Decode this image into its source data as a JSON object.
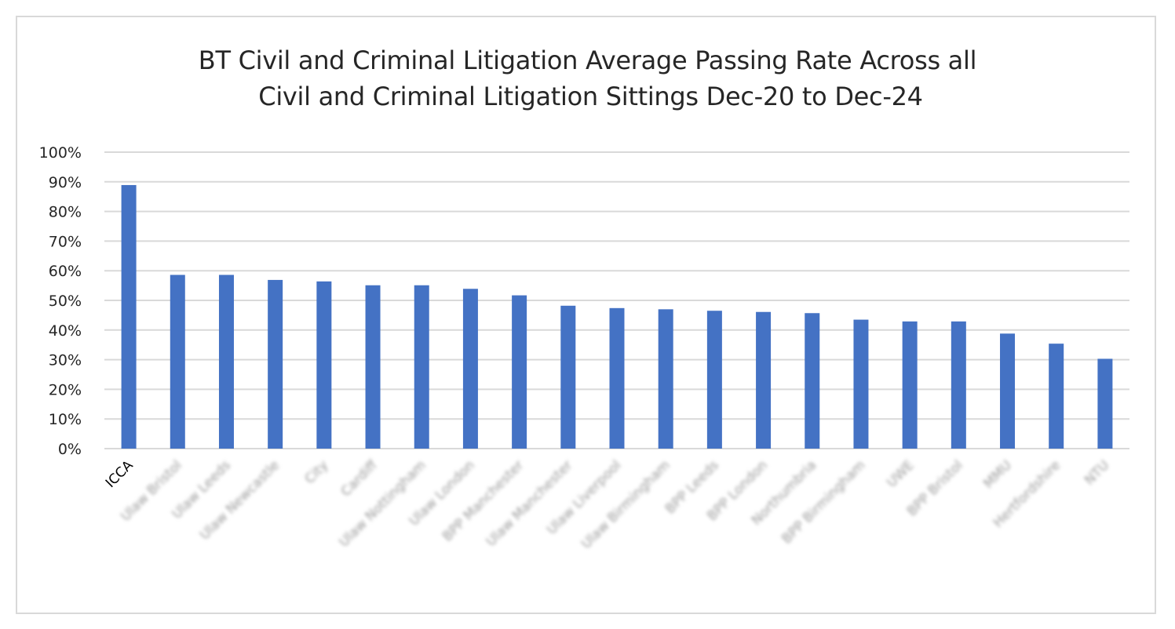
{
  "chart_data": {
    "type": "bar",
    "title": "BT Civil and Criminal Litigation Average Passing Rate Across all Civil and Criminal Litigation Sittings Dec-20 to Dec-24",
    "title_lines": [
      "BT Civil and Criminal Litigation Average Passing Rate Across all",
      "Civil and Criminal Litigation Sittings Dec-20 to Dec-24"
    ],
    "xlabel": "",
    "ylabel": "",
    "ylim": [
      0,
      100
    ],
    "y_unit": "%",
    "y_ticks": [
      0,
      10,
      20,
      30,
      40,
      50,
      60,
      70,
      80,
      90,
      100
    ],
    "y_tick_labels": [
      "0%",
      "10%",
      "20%",
      "30%",
      "40%",
      "50%",
      "60%",
      "70%",
      "80%",
      "90%",
      "100%"
    ],
    "grid": true,
    "legend": "none",
    "bar_color": "#4472C4",
    "gridline_color": "#D9D9D9",
    "categories": [
      "ICCA",
      "Ulaw Bristol",
      "Ulaw Leeds",
      "Ulaw Newcastle",
      "City",
      "Cardiff",
      "Ulaw Nottingham",
      "Ulaw London",
      "BPP Manchester",
      "Ulaw Manchester",
      "Ulaw Liverpool",
      "Ulaw Birmingham",
      "BPP Leeds",
      "BPP London",
      "Northumbria",
      "BPP Birmingham",
      "UWE",
      "BPP Bristol",
      "MMU",
      "Hertfordshire",
      "NTU"
    ],
    "category_label_blurred": [
      false,
      true,
      true,
      true,
      true,
      true,
      true,
      true,
      true,
      true,
      true,
      true,
      true,
      true,
      true,
      true,
      true,
      true,
      true,
      true,
      true
    ],
    "values": [
      88.9,
      58.6,
      58.6,
      56.9,
      56.4,
      55.1,
      55.1,
      53.9,
      51.7,
      48.2,
      47.4,
      47.0,
      46.5,
      46.1,
      45.7,
      43.5,
      42.9,
      42.9,
      38.8,
      35.4,
      30.3
    ]
  }
}
